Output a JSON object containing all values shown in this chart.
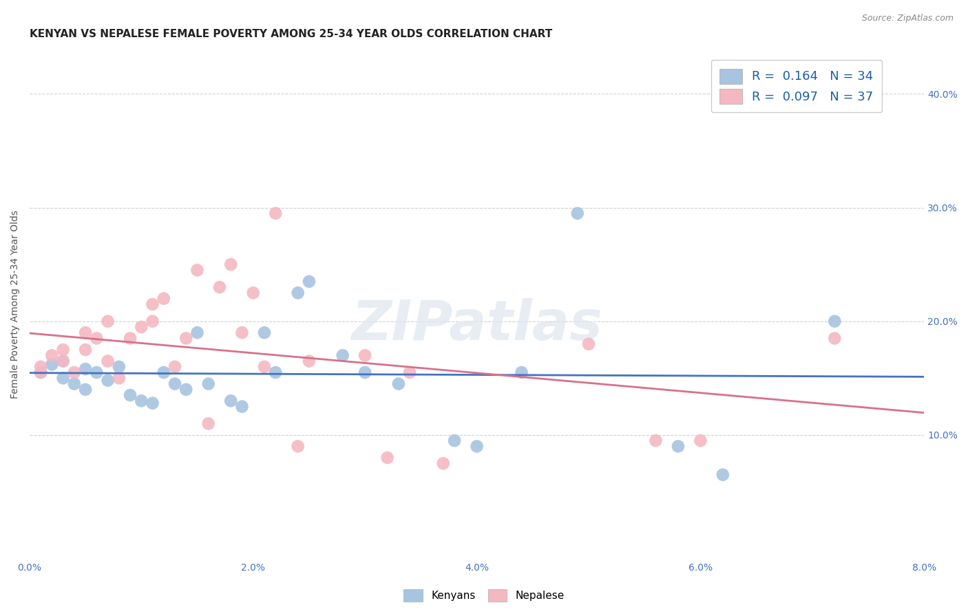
{
  "title": "KENYAN VS NEPALESE FEMALE POVERTY AMONG 25-34 YEAR OLDS CORRELATION CHART",
  "source": "Source: ZipAtlas.com",
  "ylabel": "Female Poverty Among 25-34 Year Olds",
  "xlabel_ticks": [
    "0.0%",
    "2.0%",
    "4.0%",
    "6.0%",
    "8.0%"
  ],
  "xlabel_vals": [
    0.0,
    0.02,
    0.04,
    0.06,
    0.08
  ],
  "ylabel_ticks_right": [
    "10.0%",
    "20.0%",
    "30.0%",
    "40.0%"
  ],
  "ylabel_vals_right": [
    0.1,
    0.2,
    0.3,
    0.4
  ],
  "xlim": [
    0.0,
    0.08
  ],
  "ylim": [
    -0.01,
    0.44
  ],
  "kenyan_R": 0.164,
  "kenyan_N": 34,
  "nepalese_R": 0.097,
  "nepalese_N": 37,
  "kenyan_color": "#a8c4e0",
  "nepalese_color": "#f4b8c1",
  "kenyan_line_color": "#4472c4",
  "nepalese_line_color": "#d9708a",
  "kenyan_x": [
    0.001,
    0.002,
    0.003,
    0.003,
    0.004,
    0.005,
    0.005,
    0.006,
    0.007,
    0.008,
    0.009,
    0.01,
    0.011,
    0.012,
    0.013,
    0.014,
    0.015,
    0.016,
    0.018,
    0.019,
    0.021,
    0.022,
    0.024,
    0.025,
    0.028,
    0.03,
    0.033,
    0.038,
    0.04,
    0.044,
    0.049,
    0.058,
    0.062,
    0.072
  ],
  "kenyan_y": [
    0.155,
    0.162,
    0.15,
    0.165,
    0.145,
    0.158,
    0.14,
    0.155,
    0.148,
    0.16,
    0.135,
    0.13,
    0.128,
    0.155,
    0.145,
    0.14,
    0.19,
    0.145,
    0.13,
    0.125,
    0.19,
    0.155,
    0.225,
    0.235,
    0.17,
    0.155,
    0.145,
    0.095,
    0.09,
    0.155,
    0.295,
    0.09,
    0.065,
    0.2
  ],
  "nepalese_x": [
    0.001,
    0.001,
    0.002,
    0.003,
    0.003,
    0.004,
    0.005,
    0.005,
    0.006,
    0.007,
    0.007,
    0.008,
    0.009,
    0.01,
    0.011,
    0.011,
    0.012,
    0.013,
    0.014,
    0.015,
    0.016,
    0.017,
    0.018,
    0.019,
    0.02,
    0.021,
    0.022,
    0.024,
    0.025,
    0.03,
    0.032,
    0.034,
    0.037,
    0.05,
    0.056,
    0.06,
    0.072
  ],
  "nepalese_y": [
    0.16,
    0.155,
    0.17,
    0.165,
    0.175,
    0.155,
    0.19,
    0.175,
    0.185,
    0.165,
    0.2,
    0.15,
    0.185,
    0.195,
    0.215,
    0.2,
    0.22,
    0.16,
    0.185,
    0.245,
    0.11,
    0.23,
    0.25,
    0.19,
    0.225,
    0.16,
    0.295,
    0.09,
    0.165,
    0.17,
    0.08,
    0.155,
    0.075,
    0.18,
    0.095,
    0.095,
    0.185
  ],
  "background_color": "#ffffff",
  "grid_color": "#d0d0d0",
  "title_fontsize": 11,
  "label_fontsize": 10,
  "tick_fontsize": 10,
  "legend_color": "#1a5fa8"
}
